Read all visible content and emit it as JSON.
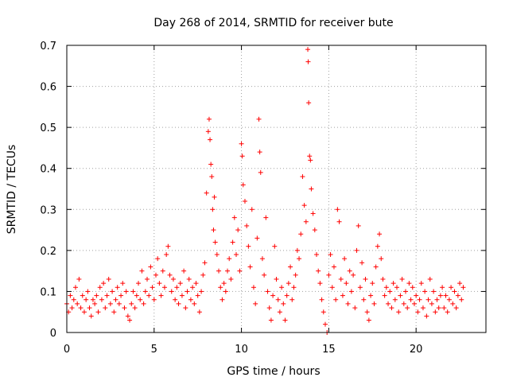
{
  "chart_data": {
    "type": "scatter",
    "title": "Day 268 of 2014, SRMTID for receiver bute",
    "xlabel": "GPS time / hours",
    "ylabel": "SRMTID / TECUs",
    "xlim": [
      0,
      24
    ],
    "ylim": [
      0,
      0.7
    ],
    "xticks": [
      0,
      5,
      10,
      15,
      20
    ],
    "yticks": [
      0,
      0.1,
      0.2,
      0.3,
      0.4,
      0.5,
      0.6,
      0.7
    ],
    "xtick_labels": [
      "0",
      "5",
      "10",
      "15",
      "20"
    ],
    "ytick_labels": [
      "0",
      "0.1",
      "0.2",
      "0.3",
      "0.4",
      "0.5",
      "0.6",
      "0.7"
    ],
    "grid": true,
    "marker": "+",
    "color": "#ff0000",
    "series": [
      {
        "name": "SRMTID",
        "points": [
          [
            0.0,
            0.07
          ],
          [
            0.1,
            0.05
          ],
          [
            0.2,
            0.09
          ],
          [
            0.3,
            0.06
          ],
          [
            0.4,
            0.08
          ],
          [
            0.5,
            0.11
          ],
          [
            0.6,
            0.07
          ],
          [
            0.7,
            0.13
          ],
          [
            0.8,
            0.06
          ],
          [
            0.9,
            0.09
          ],
          [
            1.0,
            0.05
          ],
          [
            1.1,
            0.08
          ],
          [
            1.2,
            0.1
          ],
          [
            1.3,
            0.06
          ],
          [
            1.4,
            0.04
          ],
          [
            1.5,
            0.08
          ],
          [
            1.6,
            0.07
          ],
          [
            1.7,
            0.09
          ],
          [
            1.8,
            0.05
          ],
          [
            1.9,
            0.11
          ],
          [
            2.0,
            0.08
          ],
          [
            2.1,
            0.12
          ],
          [
            2.2,
            0.06
          ],
          [
            2.3,
            0.09
          ],
          [
            2.4,
            0.13
          ],
          [
            2.5,
            0.07
          ],
          [
            2.6,
            0.1
          ],
          [
            2.7,
            0.05
          ],
          [
            2.8,
            0.08
          ],
          [
            2.9,
            0.11
          ],
          [
            3.0,
            0.07
          ],
          [
            3.1,
            0.09
          ],
          [
            3.2,
            0.12
          ],
          [
            3.3,
            0.06
          ],
          [
            3.4,
            0.1
          ],
          [
            3.5,
            0.04
          ],
          [
            3.6,
            0.03
          ],
          [
            3.7,
            0.07
          ],
          [
            3.8,
            0.1
          ],
          [
            3.9,
            0.06
          ],
          [
            4.0,
            0.09
          ],
          [
            4.1,
            0.12
          ],
          [
            4.2,
            0.08
          ],
          [
            4.3,
            0.15
          ],
          [
            4.4,
            0.07
          ],
          [
            4.5,
            0.1
          ],
          [
            4.6,
            0.13
          ],
          [
            4.7,
            0.09
          ],
          [
            4.8,
            0.16
          ],
          [
            4.9,
            0.11
          ],
          [
            5.0,
            0.08
          ],
          [
            5.1,
            0.14
          ],
          [
            5.2,
            0.18
          ],
          [
            5.3,
            0.12
          ],
          [
            5.4,
            0.09
          ],
          [
            5.5,
            0.15
          ],
          [
            5.6,
            0.11
          ],
          [
            5.7,
            0.19
          ],
          [
            5.8,
            0.21
          ],
          [
            5.9,
            0.14
          ],
          [
            6.0,
            0.1
          ],
          [
            6.1,
            0.13
          ],
          [
            6.2,
            0.08
          ],
          [
            6.3,
            0.11
          ],
          [
            6.4,
            0.07
          ],
          [
            6.5,
            0.12
          ],
          [
            6.6,
            0.09
          ],
          [
            6.7,
            0.15
          ],
          [
            6.8,
            0.06
          ],
          [
            6.9,
            0.1
          ],
          [
            7.0,
            0.13
          ],
          [
            7.1,
            0.08
          ],
          [
            7.2,
            0.11
          ],
          [
            7.3,
            0.07
          ],
          [
            7.4,
            0.12
          ],
          [
            7.5,
            0.09
          ],
          [
            7.6,
            0.05
          ],
          [
            7.7,
            0.1
          ],
          [
            7.8,
            0.14
          ],
          [
            7.9,
            0.17
          ],
          [
            8.0,
            0.34
          ],
          [
            8.1,
            0.49
          ],
          [
            8.15,
            0.52
          ],
          [
            8.2,
            0.47
          ],
          [
            8.25,
            0.41
          ],
          [
            8.3,
            0.38
          ],
          [
            8.35,
            0.3
          ],
          [
            8.4,
            0.25
          ],
          [
            8.45,
            0.33
          ],
          [
            8.5,
            0.22
          ],
          [
            8.6,
            0.19
          ],
          [
            8.7,
            0.15
          ],
          [
            8.8,
            0.11
          ],
          [
            8.9,
            0.08
          ],
          [
            9.0,
            0.12
          ],
          [
            9.1,
            0.1
          ],
          [
            9.2,
            0.15
          ],
          [
            9.3,
            0.18
          ],
          [
            9.4,
            0.13
          ],
          [
            9.5,
            0.22
          ],
          [
            9.6,
            0.28
          ],
          [
            9.7,
            0.19
          ],
          [
            9.8,
            0.25
          ],
          [
            9.9,
            0.15
          ],
          [
            10.0,
            0.46
          ],
          [
            10.05,
            0.43
          ],
          [
            10.1,
            0.36
          ],
          [
            10.2,
            0.32
          ],
          [
            10.3,
            0.26
          ],
          [
            10.4,
            0.21
          ],
          [
            10.5,
            0.16
          ],
          [
            10.6,
            0.3
          ],
          [
            10.7,
            0.11
          ],
          [
            10.8,
            0.07
          ],
          [
            10.9,
            0.23
          ],
          [
            11.0,
            0.52
          ],
          [
            11.05,
            0.44
          ],
          [
            11.1,
            0.39
          ],
          [
            11.2,
            0.18
          ],
          [
            11.3,
            0.14
          ],
          [
            11.4,
            0.28
          ],
          [
            11.5,
            0.1
          ],
          [
            11.6,
            0.06
          ],
          [
            11.7,
            0.03
          ],
          [
            11.8,
            0.09
          ],
          [
            11.9,
            0.21
          ],
          [
            12.0,
            0.13
          ],
          [
            12.1,
            0.08
          ],
          [
            12.2,
            0.05
          ],
          [
            12.3,
            0.11
          ],
          [
            12.4,
            0.07
          ],
          [
            12.5,
            0.03
          ],
          [
            12.6,
            0.09
          ],
          [
            12.7,
            0.12
          ],
          [
            12.8,
            0.16
          ],
          [
            12.9,
            0.08
          ],
          [
            13.0,
            0.11
          ],
          [
            13.1,
            0.14
          ],
          [
            13.2,
            0.2
          ],
          [
            13.3,
            0.18
          ],
          [
            13.4,
            0.24
          ],
          [
            13.5,
            0.38
          ],
          [
            13.6,
            0.31
          ],
          [
            13.7,
            0.27
          ],
          [
            13.8,
            0.69
          ],
          [
            13.82,
            0.66
          ],
          [
            13.85,
            0.56
          ],
          [
            13.9,
            0.43
          ],
          [
            13.95,
            0.42
          ],
          [
            14.0,
            0.35
          ],
          [
            14.1,
            0.29
          ],
          [
            14.2,
            0.25
          ],
          [
            14.3,
            0.19
          ],
          [
            14.4,
            0.15
          ],
          [
            14.5,
            0.12
          ],
          [
            14.6,
            0.08
          ],
          [
            14.7,
            0.05
          ],
          [
            14.8,
            0.02
          ],
          [
            14.9,
            0.0
          ],
          [
            15.0,
            0.14
          ],
          [
            15.1,
            0.19
          ],
          [
            15.2,
            0.11
          ],
          [
            15.3,
            0.16
          ],
          [
            15.4,
            0.08
          ],
          [
            15.5,
            0.3
          ],
          [
            15.6,
            0.27
          ],
          [
            15.7,
            0.13
          ],
          [
            15.8,
            0.09
          ],
          [
            15.9,
            0.18
          ],
          [
            16.0,
            0.12
          ],
          [
            16.1,
            0.07
          ],
          [
            16.2,
            0.15
          ],
          [
            16.3,
            0.1
          ],
          [
            16.4,
            0.14
          ],
          [
            16.5,
            0.06
          ],
          [
            16.6,
            0.2
          ],
          [
            16.7,
            0.26
          ],
          [
            16.8,
            0.11
          ],
          [
            16.9,
            0.17
          ],
          [
            17.0,
            0.08
          ],
          [
            17.1,
            0.13
          ],
          [
            17.2,
            0.05
          ],
          [
            17.3,
            0.03
          ],
          [
            17.4,
            0.09
          ],
          [
            17.5,
            0.12
          ],
          [
            17.6,
            0.07
          ],
          [
            17.7,
            0.16
          ],
          [
            17.8,
            0.21
          ],
          [
            17.9,
            0.24
          ],
          [
            18.0,
            0.18
          ],
          [
            18.1,
            0.13
          ],
          [
            18.2,
            0.09
          ],
          [
            18.3,
            0.11
          ],
          [
            18.4,
            0.07
          ],
          [
            18.5,
            0.1
          ],
          [
            18.6,
            0.06
          ],
          [
            18.7,
            0.12
          ],
          [
            18.8,
            0.08
          ],
          [
            18.9,
            0.11
          ],
          [
            19.0,
            0.05
          ],
          [
            19.1,
            0.09
          ],
          [
            19.2,
            0.13
          ],
          [
            19.3,
            0.07
          ],
          [
            19.4,
            0.1
          ],
          [
            19.5,
            0.06
          ],
          [
            19.6,
            0.12
          ],
          [
            19.7,
            0.08
          ],
          [
            19.8,
            0.11
          ],
          [
            19.9,
            0.07
          ],
          [
            20.0,
            0.09
          ],
          [
            20.1,
            0.05
          ],
          [
            20.2,
            0.08
          ],
          [
            20.3,
            0.12
          ],
          [
            20.4,
            0.06
          ],
          [
            20.5,
            0.1
          ],
          [
            20.6,
            0.04
          ],
          [
            20.7,
            0.08
          ],
          [
            20.8,
            0.13
          ],
          [
            20.9,
            0.07
          ],
          [
            21.0,
            0.1
          ],
          [
            21.1,
            0.05
          ],
          [
            21.2,
            0.08
          ],
          [
            21.3,
            0.06
          ],
          [
            21.4,
            0.09
          ],
          [
            21.5,
            0.11
          ],
          [
            21.6,
            0.06
          ],
          [
            21.7,
            0.09
          ],
          [
            21.8,
            0.05
          ],
          [
            21.9,
            0.08
          ],
          [
            22.0,
            0.11
          ],
          [
            22.1,
            0.07
          ],
          [
            22.2,
            0.1
          ],
          [
            22.3,
            0.06
          ],
          [
            22.4,
            0.09
          ],
          [
            22.5,
            0.12
          ],
          [
            22.6,
            0.08
          ],
          [
            22.7,
            0.11
          ]
        ]
      }
    ]
  }
}
